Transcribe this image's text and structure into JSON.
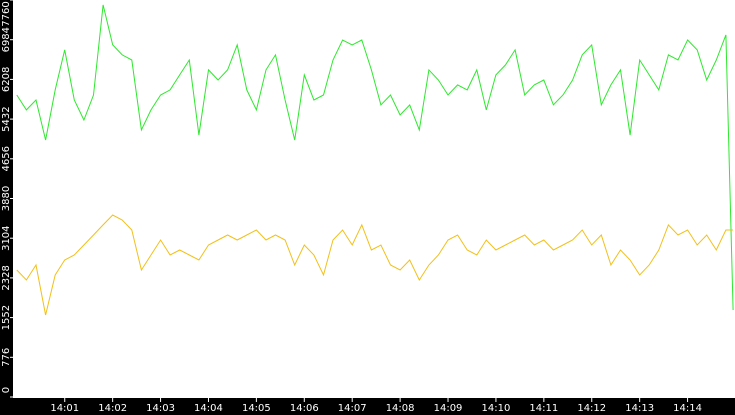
{
  "chart_data": {
    "type": "line",
    "x": [
      0,
      0.2,
      0.4,
      0.6,
      0.8,
      1,
      1.2,
      1.4,
      1.6,
      1.8,
      2,
      2.2,
      2.4,
      2.6,
      2.8,
      3,
      3.2,
      3.4,
      3.6,
      3.8,
      4,
      4.2,
      4.4,
      4.6,
      4.8,
      5,
      5.2,
      5.4,
      5.6,
      5.8,
      6,
      6.2,
      6.4,
      6.6,
      6.8,
      7,
      7.2,
      7.4,
      7.6,
      7.8,
      8,
      8.2,
      8.4,
      8.6,
      8.8,
      9,
      9.2,
      9.4,
      9.6,
      9.8,
      10,
      10.2,
      10.4,
      10.6,
      10.8,
      11,
      11.2,
      11.4,
      11.6,
      11.8,
      12,
      12.2,
      12.4,
      12.6,
      12.8,
      13,
      13.2,
      13.4,
      13.6,
      13.8,
      14,
      14.2,
      14.4,
      14.6,
      14.8,
      14.95
    ],
    "series": [
      {
        "color": "#2ee82e",
        "values": [
          5904,
          5611,
          5806,
          5024,
          6002,
          6784,
          5806,
          5415,
          5904,
          7664,
          6882,
          6686,
          6588,
          5220,
          5611,
          5904,
          6002,
          6295,
          6588,
          5122,
          6393,
          6197,
          6393,
          6882,
          6002,
          5611,
          6393,
          6686,
          5806,
          5024,
          6295,
          5806,
          5904,
          6588,
          6979,
          6882,
          6979,
          6393,
          5709,
          5904,
          5513,
          5709,
          5220,
          6393,
          6197,
          5904,
          6100,
          6002,
          6393,
          5611,
          6295,
          6491,
          6784,
          5904,
          6100,
          6197,
          5709,
          5904,
          6197,
          6686,
          6882,
          5709,
          6100,
          6393,
          5122,
          6588,
          6295,
          6002,
          6686,
          6588,
          6979,
          6784,
          6197,
          6588,
          7077,
          1701
        ]
      },
      {
        "color": "#f2c01a",
        "values": [
          2483,
          2287,
          2581,
          1603,
          2385,
          2678,
          2776,
          2972,
          3167,
          3363,
          3558,
          3460,
          3265,
          2483,
          2776,
          3069,
          2776,
          2874,
          2776,
          2678,
          2972,
          3069,
          3167,
          3069,
          3167,
          3265,
          3069,
          3167,
          3069,
          2581,
          2972,
          2776,
          2385,
          3069,
          3265,
          2972,
          3363,
          2874,
          2972,
          2581,
          2483,
          2678,
          2287,
          2581,
          2776,
          3069,
          3167,
          2874,
          2776,
          3069,
          2874,
          2972,
          3069,
          3167,
          2972,
          3069,
          2874,
          2972,
          3069,
          3265,
          2972,
          3167,
          2581,
          2874,
          2678,
          2385,
          2581,
          2874,
          3363,
          3167,
          3265,
          2972,
          3167,
          2874,
          3265,
          3265
        ]
      }
    ],
    "xlim": [
      -0.08,
      14.99
    ],
    "xticks": [
      {
        "value": 1,
        "label": "14:01"
      },
      {
        "value": 2,
        "label": "14:02"
      },
      {
        "value": 3,
        "label": "14:03"
      },
      {
        "value": 4,
        "label": "14:04"
      },
      {
        "value": 5,
        "label": "14:05"
      },
      {
        "value": 6,
        "label": "14:06"
      },
      {
        "value": 7,
        "label": "14:07"
      },
      {
        "value": 8,
        "label": "14:08"
      },
      {
        "value": 9,
        "label": "14:09"
      },
      {
        "value": 10,
        "label": "14:10"
      },
      {
        "value": 11,
        "label": "14:11"
      },
      {
        "value": 12,
        "label": "14:12"
      },
      {
        "value": 13,
        "label": "14:13"
      },
      {
        "value": 14,
        "label": "14:14"
      }
    ],
    "ylim": [
      0,
      7760
    ],
    "yticks": [
      0,
      776,
      1552,
      2328,
      3104,
      3880,
      4656,
      5432,
      6208,
      6984,
      7760
    ]
  }
}
